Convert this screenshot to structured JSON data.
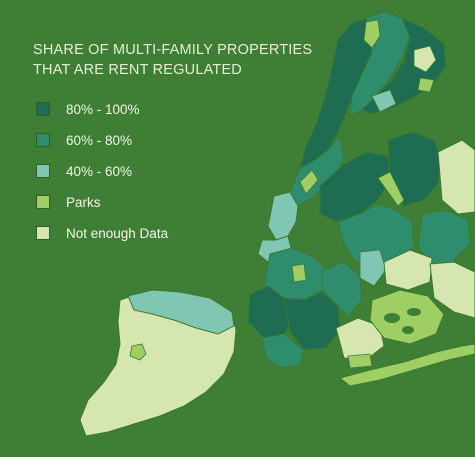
{
  "title": {
    "line1": "SHARE OF MULTI-FAMILY PROPERTIES",
    "line2": "THAT ARE RENT REGULATED"
  },
  "legend": [
    {
      "label": "80% - 100%",
      "color": "#1e6c52"
    },
    {
      "label": "60% - 80%",
      "color": "#2e8d6d"
    },
    {
      "label": "40% - 60%",
      "color": "#7fc7b2"
    },
    {
      "label": "Parks",
      "color": "#9fcf64"
    },
    {
      "label": "Not enough Data",
      "color": "#d6e6b0"
    }
  ],
  "colors": {
    "background": "#3f7f35",
    "border": "#3a7a2f",
    "dark_green": "#1e6c52",
    "mid_green": "#2e8d6d",
    "light_teal": "#7fc7b2",
    "parks": "#9fcf64",
    "no_data": "#d6e6b0"
  }
}
